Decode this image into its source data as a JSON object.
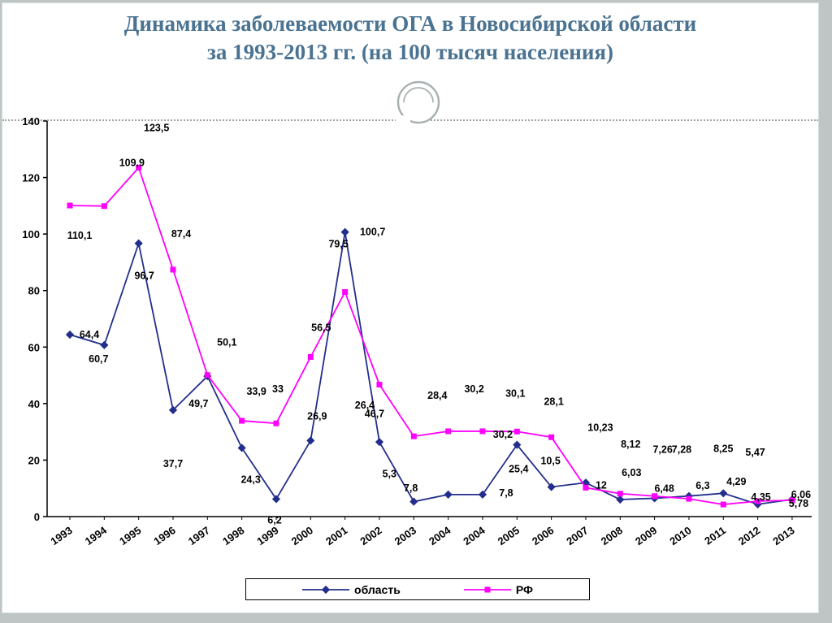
{
  "slide": {
    "title_line1": "Динамика заболеваемости ОГА в Новосибирской области",
    "title_line2": "за 1993-2013 гг. (на 100 тысяч населения)",
    "title_color": "#4a7392"
  },
  "chart_data": {
    "type": "line",
    "title": "Динамика заболеваемости ОГА в Новосибирской области за 1993-2013 гг. (на 100 тысяч населения)",
    "xlabel": "",
    "ylabel": "",
    "ylim": [
      0,
      140
    ],
    "yticks": [
      0,
      20,
      40,
      60,
      80,
      100,
      120,
      140
    ],
    "grid": false,
    "legend_position": "bottom",
    "categories": [
      "1993",
      "1994",
      "1995",
      "1996",
      "1997",
      "1998",
      "1999",
      "2000",
      "2001",
      "2002",
      "2003",
      "2004",
      "2004",
      "2005",
      "2006",
      "2007",
      "2008",
      "2009",
      "2010",
      "2011",
      "2012",
      "2013"
    ],
    "series": [
      {
        "name": "область",
        "color": "#232e8c",
        "marker": "diamond",
        "values": [
          64.4,
          60.7,
          96.7,
          37.7,
          49.7,
          24.3,
          6.2,
          26.9,
          100.7,
          26.4,
          5.3,
          7.8,
          7.8,
          25.4,
          10.5,
          12,
          6.03,
          6.48,
          7.28,
          8.25,
          4.35,
          6.06
        ],
        "labels": [
          "64,4",
          "60,7",
          "96,7",
          "37,7",
          "49,7",
          "24,3",
          "6,2",
          "26,9",
          "100,7",
          "26,4",
          "5,3",
          "7,8",
          "7,8",
          "25,4",
          "10,5",
          "12",
          "6,03",
          "6,48",
          "7,28",
          "8,25",
          "4,35",
          "6,06"
        ],
        "label_dx": [
          24,
          -7,
          7,
          0,
          -11,
          11,
          -2,
          8,
          34,
          -18,
          -30,
          -46,
          29,
          2,
          -1,
          19,
          14,
          12,
          -9,
          0,
          4,
          11
        ],
        "label_dy": [
          0,
          17,
          40,
          66,
          34,
          39,
          26,
          -30,
          0,
          -45,
          -34,
          -8,
          -2,
          30,
          -32,
          3,
          -33,
          -12,
          -57,
          -55,
          -9,
          -6
        ]
      },
      {
        "name": "РФ",
        "color": "#ff00ff",
        "marker": "square",
        "values": [
          110.1,
          109.9,
          123.5,
          87.4,
          50.1,
          33.9,
          33,
          56.5,
          79.5,
          46.7,
          28.4,
          30.2,
          30.2,
          30.1,
          28.1,
          10.23,
          8.12,
          7.26,
          6.3,
          4.29,
          5.47,
          5.78
        ],
        "labels": [
          "110,1",
          "109,9",
          "123,5",
          "87,4",
          "50,1",
          "33,9",
          "33",
          "56,5",
          "79,5",
          "46,7",
          "28,4",
          "30,2",
          "30,2",
          "30,1",
          "28,1",
          "10,23",
          "8,12",
          "7,26",
          "6,3",
          "4,29",
          "5,47",
          "5,78"
        ],
        "label_dx": [
          12,
          34,
          22,
          10,
          24,
          18,
          2,
          13,
          -8,
          -6,
          29,
          32,
          25,
          -2,
          3,
          18,
          13,
          10,
          17,
          16,
          -3,
          8
        ],
        "label_dy": [
          37,
          -53,
          -49,
          -44,
          -40,
          -36,
          -42,
          -36,
          -59,
          36,
          -50,
          -52,
          4,
          -47,
          -44,
          -74,
          -61,
          -57,
          -16,
          -28,
          -60,
          4
        ]
      }
    ]
  }
}
